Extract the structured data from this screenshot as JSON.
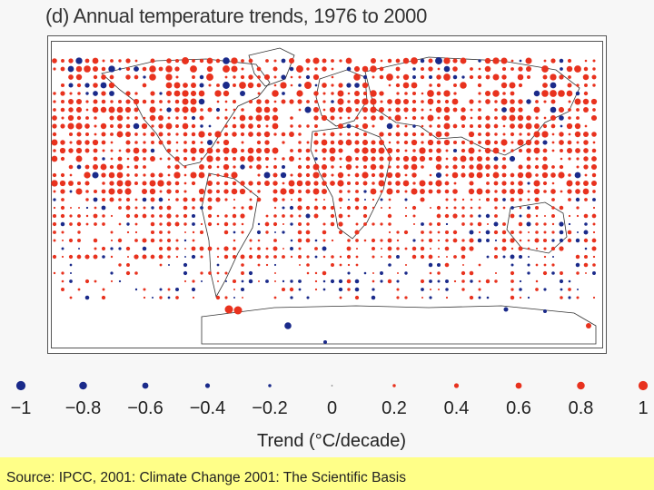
{
  "title": "(d) Annual temperature trends, 1976 to 2000",
  "legend": {
    "title": "Trend (°C/decade)",
    "items": [
      {
        "label": "−1",
        "value": -1,
        "color": "#1a2a8a"
      },
      {
        "label": "−0.8",
        "value": -0.8,
        "color": "#1a2a8a"
      },
      {
        "label": "−0.6",
        "value": -0.6,
        "color": "#1a2a8a"
      },
      {
        "label": "−0.4",
        "value": -0.4,
        "color": "#1a2a8a"
      },
      {
        "label": "−0.2",
        "value": -0.2,
        "color": "#1a2a8a"
      },
      {
        "label": "0",
        "value": 0,
        "color": "#888888"
      },
      {
        "label": "0.2",
        "value": 0.2,
        "color": "#e8321e"
      },
      {
        "label": "0.4",
        "value": 0.4,
        "color": "#e8321e"
      },
      {
        "label": "0.6",
        "value": 0.6,
        "color": "#e8321e"
      },
      {
        "label": "0.8",
        "value": 0.8,
        "color": "#e8321e"
      },
      {
        "label": "1",
        "value": 1,
        "color": "#e8321e"
      }
    ]
  },
  "source": "Source:  IPCC, 2001:  Climate Change 2001:  The Scientific Basis",
  "colors": {
    "warming": "#e8321e",
    "cooling": "#1a2a8a",
    "source_bg": "#ffff88"
  }
}
